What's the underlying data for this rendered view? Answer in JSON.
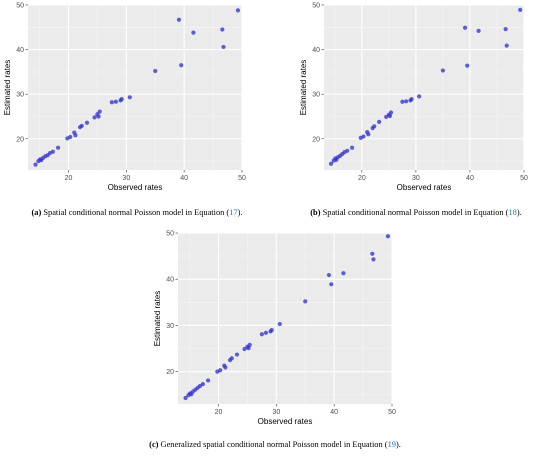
{
  "colors": {
    "panel_background": "#ebebeb",
    "grid_major": "#ffffff",
    "grid_minor": "#f5f5f5",
    "point": "#3333cc"
  },
  "chart_data": [
    {
      "type": "scatter",
      "xlabel": "Observed rates",
      "ylabel": "Estimated rates",
      "xlim": [
        13,
        50
      ],
      "ylim": [
        13,
        50
      ],
      "xticks": [
        20,
        30,
        40,
        50
      ],
      "yticks": [
        20,
        30,
        40,
        50
      ],
      "grid": true,
      "points": [
        [
          14.3,
          14.2
        ],
        [
          14.8,
          15.0
        ],
        [
          15.1,
          15.4
        ],
        [
          15.3,
          15.2
        ],
        [
          15.6,
          15.7
        ],
        [
          16.0,
          16.1
        ],
        [
          16.4,
          16.3
        ],
        [
          16.8,
          16.8
        ],
        [
          17.3,
          17.1
        ],
        [
          18.2,
          18.0
        ],
        [
          19.8,
          20.1
        ],
        [
          20.3,
          20.4
        ],
        [
          21.0,
          21.4
        ],
        [
          21.2,
          20.8
        ],
        [
          22.0,
          22.6
        ],
        [
          22.3,
          22.9
        ],
        [
          23.2,
          23.6
        ],
        [
          24.5,
          24.8
        ],
        [
          25.0,
          25.5
        ],
        [
          25.2,
          25.0
        ],
        [
          25.4,
          26.1
        ],
        [
          27.5,
          28.2
        ],
        [
          28.2,
          28.3
        ],
        [
          29.0,
          28.6
        ],
        [
          29.2,
          28.9
        ],
        [
          30.6,
          29.3
        ],
        [
          35.0,
          35.2
        ],
        [
          39.1,
          46.7
        ],
        [
          39.5,
          36.5
        ],
        [
          41.6,
          43.8
        ],
        [
          46.6,
          44.5
        ],
        [
          46.8,
          40.6
        ],
        [
          49.3,
          48.8
        ]
      ],
      "caption": {
        "label": "(a)",
        "text": " Spatial conditional normal Poisson model in Equation (",
        "ref": "17",
        "end": ")."
      }
    },
    {
      "type": "scatter",
      "xlabel": "Observed rates",
      "ylabel": "Estimated rates",
      "xlim": [
        13,
        50
      ],
      "ylim": [
        13,
        50
      ],
      "xticks": [
        20,
        30,
        40,
        50
      ],
      "yticks": [
        20,
        30,
        40,
        50
      ],
      "grid": true,
      "points": [
        [
          14.3,
          14.4
        ],
        [
          14.8,
          15.1
        ],
        [
          15.1,
          15.6
        ],
        [
          15.3,
          15.3
        ],
        [
          15.6,
          15.9
        ],
        [
          16.0,
          16.2
        ],
        [
          16.4,
          16.6
        ],
        [
          16.8,
          17.0
        ],
        [
          17.3,
          17.3
        ],
        [
          18.2,
          18.0
        ],
        [
          19.8,
          20.2
        ],
        [
          20.3,
          20.5
        ],
        [
          21.0,
          21.5
        ],
        [
          21.2,
          21.0
        ],
        [
          22.0,
          22.4
        ],
        [
          22.3,
          22.8
        ],
        [
          23.2,
          23.8
        ],
        [
          24.5,
          24.9
        ],
        [
          25.0,
          25.4
        ],
        [
          25.2,
          25.1
        ],
        [
          25.4,
          25.9
        ],
        [
          27.5,
          28.3
        ],
        [
          28.2,
          28.4
        ],
        [
          29.0,
          28.6
        ],
        [
          29.2,
          28.9
        ],
        [
          30.6,
          29.5
        ],
        [
          35.0,
          35.3
        ],
        [
          39.1,
          44.9
        ],
        [
          39.5,
          36.4
        ],
        [
          41.6,
          44.2
        ],
        [
          46.6,
          44.6
        ],
        [
          46.8,
          40.9
        ],
        [
          49.3,
          48.9
        ]
      ],
      "caption": {
        "label": "(b)",
        "text": " Spatial conditional normal Poisson model in Equation (",
        "ref": "18",
        "end": ")."
      }
    },
    {
      "type": "scatter",
      "xlabel": "Observed rates",
      "ylabel": "Estimated rates",
      "xlim": [
        13,
        50
      ],
      "ylim": [
        13,
        50
      ],
      "xticks": [
        20,
        30,
        40,
        50
      ],
      "yticks": [
        20,
        30,
        40,
        50
      ],
      "grid": true,
      "points": [
        [
          14.3,
          14.3
        ],
        [
          14.8,
          14.9
        ],
        [
          15.1,
          15.3
        ],
        [
          15.3,
          15.1
        ],
        [
          15.6,
          15.7
        ],
        [
          16.0,
          16.1
        ],
        [
          16.4,
          16.5
        ],
        [
          16.8,
          16.9
        ],
        [
          17.3,
          17.3
        ],
        [
          18.2,
          18.1
        ],
        [
          19.8,
          20.0
        ],
        [
          20.3,
          20.3
        ],
        [
          21.0,
          21.3
        ],
        [
          21.2,
          20.9
        ],
        [
          22.0,
          22.5
        ],
        [
          22.3,
          22.9
        ],
        [
          23.2,
          23.7
        ],
        [
          24.5,
          24.9
        ],
        [
          25.0,
          25.4
        ],
        [
          25.2,
          25.1
        ],
        [
          25.4,
          25.8
        ],
        [
          27.5,
          28.1
        ],
        [
          28.2,
          28.4
        ],
        [
          29.0,
          28.7
        ],
        [
          29.2,
          29.0
        ],
        [
          30.6,
          30.3
        ],
        [
          35.0,
          35.2
        ],
        [
          39.1,
          40.9
        ],
        [
          39.5,
          38.9
        ],
        [
          41.6,
          41.3
        ],
        [
          46.6,
          45.5
        ],
        [
          46.8,
          44.3
        ],
        [
          49.3,
          49.3
        ]
      ],
      "caption": {
        "label": "(c)",
        "text": " Generalized spatial conditional normal Poisson model in Equation (",
        "ref": "19",
        "end": ")."
      }
    }
  ]
}
